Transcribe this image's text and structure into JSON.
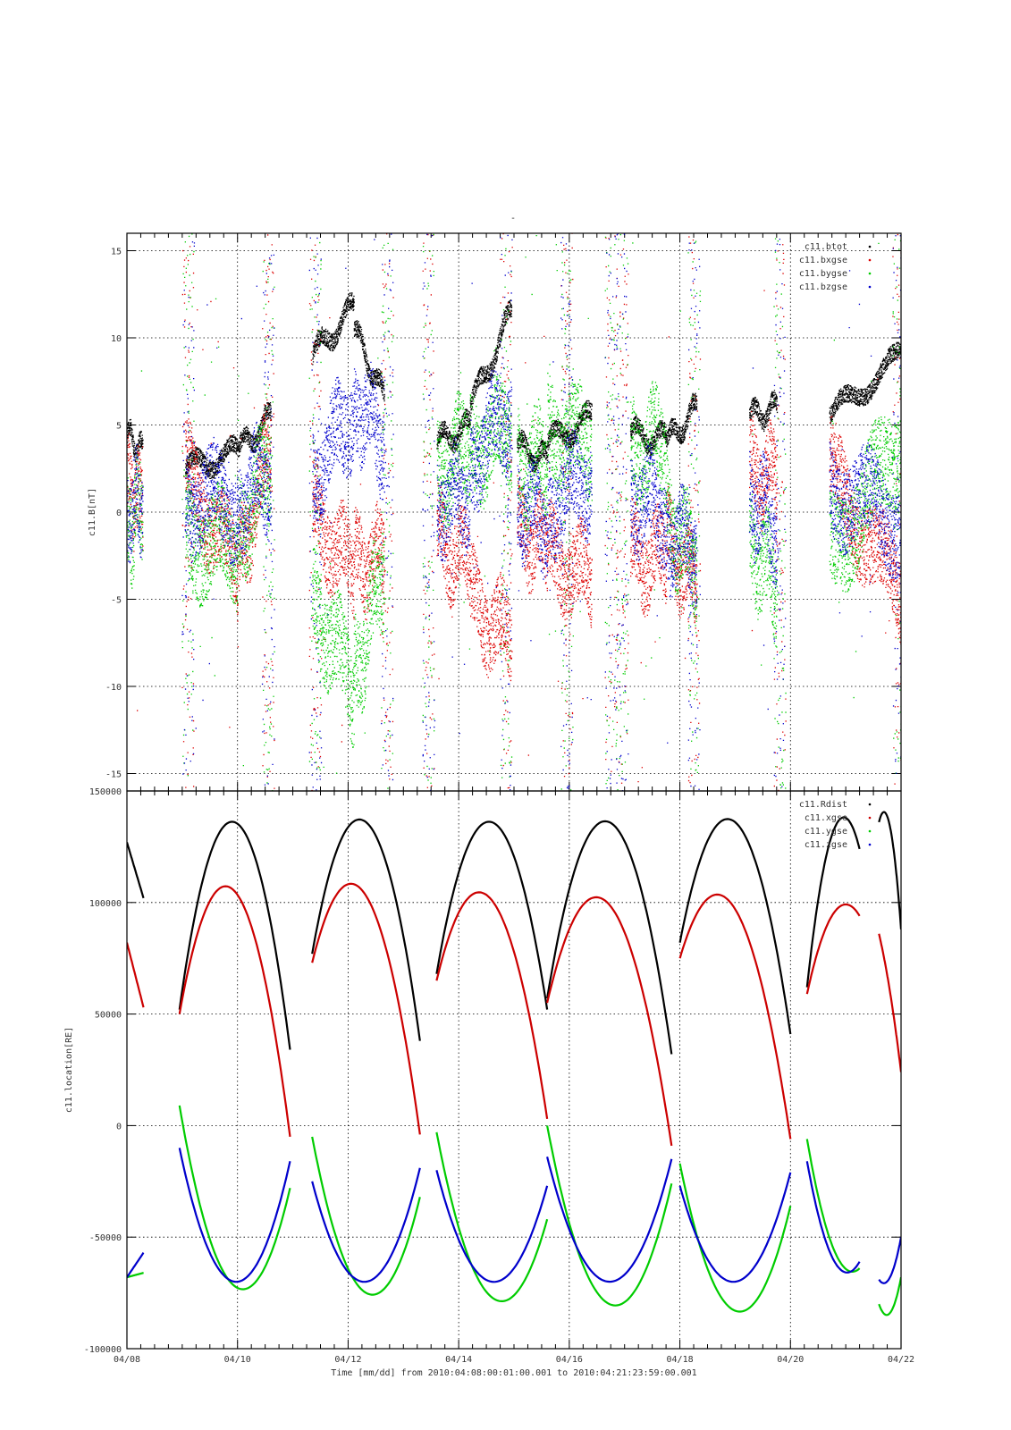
{
  "title_mark": "-",
  "x_axis": {
    "ticks": [
      "04/08",
      "04/10",
      "04/12",
      "04/14",
      "04/16",
      "04/18",
      "04/20",
      "04/22"
    ],
    "label": "Time [mm/dd]  from 2010:04:08:00:01:00.001  to  2010:04:21:23:59:00.001"
  },
  "chart_data": [
    {
      "type": "scatter",
      "ylabel": "c11.B[nT]",
      "xlim_days": [
        0,
        14
      ],
      "ylim": [
        -16,
        16
      ],
      "yticks": [
        -15,
        -10,
        -5,
        0,
        5,
        10,
        15
      ],
      "grid": true,
      "legend_position": "top-right",
      "series": [
        {
          "name": "c11.btot",
          "color": "#000000"
        },
        {
          "name": "c11.bxgse",
          "color": "#dd0000"
        },
        {
          "name": "c11.bygse",
          "color": "#00cc00"
        },
        {
          "name": "c11.bzgse",
          "color": "#0000cc"
        }
      ],
      "segments": [
        {
          "t": [
            0.0,
            0.28
          ],
          "btot": [
            4.5,
            3.5
          ],
          "bx": [
            1.5,
            0.5
          ],
          "by": [
            -1.0,
            0.5
          ],
          "bz": [
            0.0,
            1.0
          ]
        },
        {
          "t": [
            1.05,
            2.0
          ],
          "btot": [
            2.5,
            3.5
          ],
          "bx": [
            2.5,
            -3.5
          ],
          "by": [
            -1.5,
            -2.0
          ],
          "bz": [
            1.0,
            0.5
          ]
        },
        {
          "t": [
            2.0,
            2.6
          ],
          "btot": [
            3.5,
            5.5
          ],
          "bx": [
            -3.5,
            4.0
          ],
          "by": [
            -1.5,
            3.0
          ],
          "bz": [
            0.5,
            2.5
          ]
        },
        {
          "t": [
            3.35,
            4.1
          ],
          "btot": [
            9.0,
            11.8
          ],
          "bx": [
            0.0,
            -3.5
          ],
          "by": [
            -5.0,
            -10.0
          ],
          "bz": [
            2.0,
            6.0
          ]
        },
        {
          "t": [
            4.1,
            4.65
          ],
          "btot": [
            10.5,
            6.5
          ],
          "bx": [
            -3.0,
            -2.5
          ],
          "by": [
            -9.5,
            -3.0
          ],
          "bz": [
            6.5,
            4.0
          ]
        },
        {
          "t": [
            5.6,
            6.2
          ],
          "btot": [
            4.0,
            5.0
          ],
          "bx": [
            -1.5,
            -3.0
          ],
          "by": [
            2.0,
            4.0
          ],
          "bz": [
            0.5,
            1.0
          ]
        },
        {
          "t": [
            6.2,
            6.95
          ],
          "btot": [
            6.0,
            11.5
          ],
          "bx": [
            -5.0,
            -7.5
          ],
          "by": [
            3.5,
            5.0
          ],
          "bz": [
            3.0,
            6.0
          ]
        },
        {
          "t": [
            7.05,
            7.6
          ],
          "btot": [
            3.8,
            3.0
          ],
          "bx": [
            -1.0,
            -2.0
          ],
          "by": [
            2.5,
            3.0
          ],
          "bz": [
            0.5,
            -0.5
          ]
        },
        {
          "t": [
            7.6,
            8.4
          ],
          "btot": [
            4.0,
            5.5
          ],
          "bx": [
            -2.5,
            -4.0
          ],
          "by": [
            4.5,
            4.0
          ],
          "bz": [
            0.5,
            2.0
          ]
        },
        {
          "t": [
            9.1,
            9.75
          ],
          "btot": [
            4.5,
            4.2
          ],
          "bx": [
            -2.5,
            -2.8
          ],
          "by": [
            3.5,
            4.0
          ],
          "bz": [
            1.0,
            0.0
          ]
        },
        {
          "t": [
            9.75,
            10.3
          ],
          "btot": [
            4.0,
            6.0
          ],
          "bx": [
            -1.5,
            -4.5
          ],
          "by": [
            0.0,
            -3.0
          ],
          "bz": [
            -1.5,
            -2.0
          ]
        },
        {
          "t": [
            11.25,
            11.75
          ],
          "btot": [
            5.5,
            6.0
          ],
          "bx": [
            2.5,
            2.0
          ],
          "by": [
            -1.5,
            -4.5
          ],
          "bz": [
            1.0,
            -1.0
          ]
        },
        {
          "t": [
            12.7,
            14.0
          ],
          "btot": [
            5.5,
            9.0
          ],
          "bx": [
            2.5,
            -5.0
          ],
          "by": [
            -2.5,
            4.0
          ],
          "bz": [
            1.5,
            -0.5
          ]
        }
      ]
    },
    {
      "type": "line",
      "ylabel": "c11.location[RE]",
      "xlim_days": [
        0,
        14
      ],
      "ylim": [
        -100000,
        150000
      ],
      "yticks": [
        -100000,
        -50000,
        0,
        50000,
        100000,
        150000
      ],
      "grid": true,
      "legend_position": "top-right",
      "series": [
        {
          "name": "c11.Rdist",
          "color": "#000000"
        },
        {
          "name": "c11.xgse",
          "color": "#cc0000"
        },
        {
          "name": "c11.ygse",
          "color": "#00cc00"
        },
        {
          "name": "c11.zgse",
          "color": "#0000cc"
        }
      ],
      "segments": [
        {
          "t": [
            0.0,
            0.3
          ],
          "rdist": [
            127000,
            102000
          ],
          "x": [
            82000,
            53000
          ],
          "y": [
            -68000,
            -66000
          ],
          "z": [
            -68000,
            -57000
          ]
        },
        {
          "t": [
            0.95,
            2.95
          ],
          "rdist": [
            52000,
            136000,
            34000
          ],
          "x": [
            50000,
            105000,
            -5000
          ],
          "y": [
            9000,
            -72000,
            -28000
          ],
          "z": [
            -10000,
            -70000,
            -16000
          ]
        },
        {
          "t": [
            3.35,
            5.3
          ],
          "rdist": [
            77000,
            136000,
            38000
          ],
          "x": [
            73000,
            103000,
            -4000
          ],
          "y": [
            -5000,
            -75000,
            -32000
          ],
          "z": [
            -25000,
            -70000,
            -19000
          ]
        },
        {
          "t": [
            5.6,
            7.6
          ],
          "rdist": [
            68000,
            136000,
            52000
          ],
          "x": [
            65000,
            101000,
            3000
          ],
          "y": [
            -3000,
            -77000,
            -42000
          ],
          "z": [
            -20000,
            -70000,
            -27000
          ]
        },
        {
          "t": [
            7.6,
            9.85
          ],
          "rdist": [
            57000,
            136000,
            32000
          ],
          "x": [
            55000,
            99000,
            -9000
          ],
          "y": [
            0,
            -80000,
            -26000
          ],
          "z": [
            -14000,
            -70000,
            -15000
          ]
        },
        {
          "t": [
            10.0,
            12.0
          ],
          "rdist": [
            82000,
            136000,
            41000
          ],
          "x": [
            75000,
            97000,
            -6000
          ],
          "y": [
            -17000,
            -83000,
            -36000
          ],
          "z": [
            -27000,
            -70000,
            -21000
          ]
        },
        {
          "t": [
            12.3,
            13.25
          ],
          "rdist": [
            62000,
            132000,
            124000
          ],
          "x": [
            59000,
            95000,
            94000
          ],
          "y": [
            -6000,
            -55000,
            -64000
          ],
          "z": [
            -16000,
            -60000,
            -61000
          ]
        },
        {
          "t": [
            13.6,
            14.0
          ],
          "rdist": [
            136000,
            134000,
            88000
          ],
          "x": [
            86000,
            60000,
            24000
          ],
          "y": [
            -80000,
            -84000,
            -68000
          ],
          "z": [
            -69000,
            -68000,
            -50000
          ]
        }
      ]
    }
  ]
}
